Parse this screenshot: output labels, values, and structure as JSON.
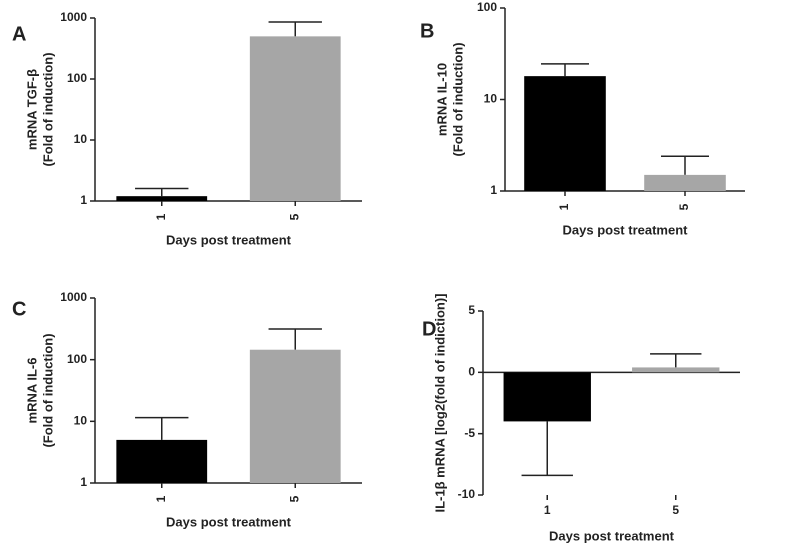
{
  "chart_data": [
    {
      "type": "bar",
      "panel": "A",
      "ylabel": [
        "mRNA TGF-β",
        "(Fold of induction)"
      ],
      "xlabel": "Days post treatment",
      "categories": [
        "1",
        "5"
      ],
      "values": [
        1.2,
        500
      ],
      "errors": [
        0.4,
        360
      ],
      "colors": [
        "#000000",
        "#a6a6a6"
      ],
      "log_scale": true,
      "ylim": [
        1,
        1000
      ],
      "yticks": [
        1,
        10,
        100,
        1000
      ],
      "xtick_rotation": -90
    },
    {
      "type": "bar",
      "panel": "B",
      "ylabel": [
        "mRNA IL-10",
        "(Fold of induction)"
      ],
      "xlabel": "Days post treatment",
      "categories": [
        "1",
        "5"
      ],
      "values": [
        18,
        1.5
      ],
      "errors": [
        6.5,
        0.9
      ],
      "colors": [
        "#000000",
        "#a6a6a6"
      ],
      "log_scale": true,
      "ylim": [
        1,
        100
      ],
      "yticks": [
        1,
        10,
        100
      ],
      "xtick_rotation": -90
    },
    {
      "type": "bar",
      "panel": "C",
      "ylabel": [
        "mRNA IL-6",
        "(Fold of induction)"
      ],
      "xlabel": "Days post treatment",
      "categories": [
        "1",
        "5"
      ],
      "values": [
        5,
        145
      ],
      "errors": [
        6.5,
        170
      ],
      "colors": [
        "#000000",
        "#a6a6a6"
      ],
      "log_scale": true,
      "ylim": [
        1,
        1000
      ],
      "yticks": [
        1,
        10,
        100,
        1000
      ],
      "xtick_rotation": -90
    },
    {
      "type": "bar",
      "panel": "D",
      "ylabel": [
        "IL-1β mRNA [log2(fold of indiction)]"
      ],
      "xlabel": "Days post treatment",
      "categories": [
        "1",
        "5"
      ],
      "values": [
        -4,
        0.4
      ],
      "errors": [
        4.4,
        1.1
      ],
      "colors": [
        "#000000",
        "#a6a6a6"
      ],
      "log_scale": false,
      "ylim": [
        -10,
        5
      ],
      "yticks": [
        -10,
        -5,
        0,
        5
      ],
      "xtick_rotation": 0
    }
  ]
}
